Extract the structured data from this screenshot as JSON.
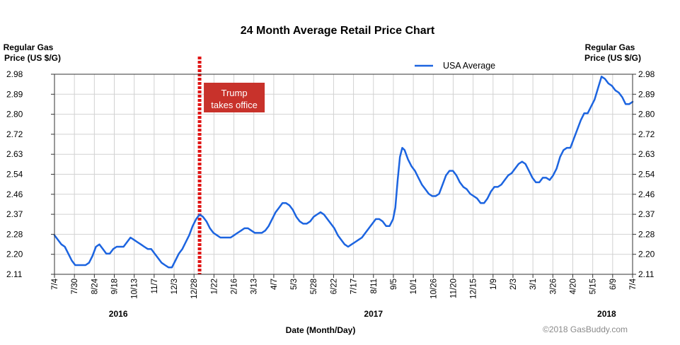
{
  "chart_data": {
    "type": "line",
    "title": "24 Month Average Retail Price Chart",
    "ylabel_left": [
      "Regular Gas",
      "Price (US $/G)"
    ],
    "ylabel_right": [
      "Regular Gas",
      "Price (US $/G)"
    ],
    "xlabel": "Date (Month/Day)",
    "yticks": [
      "2.98",
      "2.89",
      "2.80",
      "2.72",
      "2.63",
      "2.54",
      "2.46",
      "2.37",
      "2.28",
      "2.20",
      "2.11"
    ],
    "ylim": [
      2.11,
      2.98
    ],
    "xticks": [
      "7/4",
      "7/30",
      "8/24",
      "9/18",
      "10/13",
      "11/7",
      "12/3",
      "12/28",
      "1/22",
      "2/16",
      "3/13",
      "4/7",
      "5/3",
      "5/28",
      "6/22",
      "7/17",
      "8/11",
      "9/5",
      "10/1",
      "10/26",
      "11/20",
      "12/15",
      "1/9",
      "2/3",
      "3/1",
      "3/26",
      "4/20",
      "5/15",
      "6/9",
      "7/4"
    ],
    "years": [
      {
        "label": "2016",
        "at_tick": 3.2
      },
      {
        "label": "2017",
        "at_tick": 16.0
      },
      {
        "label": "2018",
        "at_tick": 27.7
      }
    ],
    "grid": true,
    "legend_position": "top-right",
    "series": [
      {
        "name": "USA Average",
        "color": "#1c64e0",
        "points": [
          [
            0,
            2.28
          ],
          [
            0.3,
            2.26
          ],
          [
            0.6,
            2.24
          ],
          [
            0.9,
            2.23
          ],
          [
            1.2,
            2.2
          ],
          [
            1.5,
            2.17
          ],
          [
            1.8,
            2.15
          ],
          [
            2.1,
            2.15
          ],
          [
            2.4,
            2.15
          ],
          [
            2.7,
            2.15
          ],
          [
            3.0,
            2.16
          ],
          [
            3.3,
            2.19
          ],
          [
            3.6,
            2.23
          ],
          [
            3.9,
            2.24
          ],
          [
            4.2,
            2.22
          ],
          [
            4.5,
            2.2
          ],
          [
            4.8,
            2.2
          ],
          [
            5.1,
            2.22
          ],
          [
            5.4,
            2.23
          ],
          [
            5.7,
            2.23
          ],
          [
            6.0,
            2.23
          ],
          [
            6.3,
            2.25
          ],
          [
            6.6,
            2.27
          ],
          [
            6.9,
            2.26
          ],
          [
            7.2,
            2.25
          ],
          [
            7.5,
            2.24
          ],
          [
            7.8,
            2.23
          ],
          [
            8.1,
            2.22
          ],
          [
            8.4,
            2.22
          ],
          [
            8.7,
            2.2
          ],
          [
            9.0,
            2.18
          ],
          [
            9.3,
            2.16
          ],
          [
            9.6,
            2.15
          ],
          [
            9.9,
            2.14
          ],
          [
            10.2,
            2.14
          ],
          [
            10.5,
            2.17
          ],
          [
            10.8,
            2.2
          ],
          [
            11.1,
            2.22
          ],
          [
            11.4,
            2.25
          ],
          [
            11.7,
            2.28
          ],
          [
            12.0,
            2.32
          ],
          [
            12.3,
            2.35
          ],
          [
            12.6,
            2.37
          ],
          [
            12.9,
            2.36
          ],
          [
            13.2,
            2.34
          ],
          [
            13.5,
            2.31
          ],
          [
            13.8,
            2.29
          ],
          [
            14.1,
            2.28
          ],
          [
            14.4,
            2.27
          ],
          [
            14.7,
            2.27
          ],
          [
            15.0,
            2.27
          ],
          [
            15.3,
            2.27
          ],
          [
            15.6,
            2.28
          ],
          [
            15.9,
            2.29
          ],
          [
            16.2,
            2.3
          ],
          [
            16.5,
            2.31
          ],
          [
            16.8,
            2.31
          ],
          [
            17.1,
            2.3
          ],
          [
            17.4,
            2.29
          ],
          [
            17.7,
            2.29
          ],
          [
            18.0,
            2.29
          ],
          [
            18.3,
            2.3
          ],
          [
            18.6,
            2.32
          ],
          [
            18.9,
            2.35
          ],
          [
            19.2,
            2.38
          ],
          [
            19.5,
            2.4
          ],
          [
            19.8,
            2.42
          ],
          [
            20.1,
            2.42
          ],
          [
            20.4,
            2.41
          ],
          [
            20.7,
            2.39
          ],
          [
            21.0,
            2.36
          ],
          [
            21.3,
            2.34
          ],
          [
            21.6,
            2.33
          ],
          [
            21.9,
            2.33
          ],
          [
            22.2,
            2.34
          ],
          [
            22.5,
            2.36
          ],
          [
            22.8,
            2.37
          ],
          [
            23.1,
            2.38
          ],
          [
            23.4,
            2.37
          ],
          [
            23.7,
            2.35
          ],
          [
            24.0,
            2.33
          ],
          [
            24.3,
            2.31
          ],
          [
            24.6,
            2.28
          ],
          [
            24.9,
            2.26
          ],
          [
            25.2,
            2.24
          ],
          [
            25.5,
            2.23
          ],
          [
            25.8,
            2.24
          ],
          [
            26.1,
            2.25
          ],
          [
            26.4,
            2.26
          ],
          [
            26.7,
            2.27
          ],
          [
            27.0,
            2.29
          ],
          [
            27.3,
            2.31
          ],
          [
            27.6,
            2.33
          ],
          [
            27.9,
            2.35
          ],
          [
            28.2,
            2.35
          ],
          [
            28.5,
            2.34
          ],
          [
            28.8,
            2.32
          ],
          [
            29.1,
            2.32
          ],
          [
            29.4,
            2.35
          ],
          [
            29.6,
            2.4
          ],
          [
            29.8,
            2.52
          ],
          [
            30.0,
            2.62
          ],
          [
            30.2,
            2.66
          ],
          [
            30.4,
            2.65
          ],
          [
            30.7,
            2.61
          ],
          [
            31.0,
            2.58
          ],
          [
            31.3,
            2.56
          ],
          [
            31.6,
            2.53
          ],
          [
            31.9,
            2.5
          ],
          [
            32.2,
            2.48
          ],
          [
            32.5,
            2.46
          ],
          [
            32.8,
            2.45
          ],
          [
            33.1,
            2.45
          ],
          [
            33.4,
            2.46
          ],
          [
            33.7,
            2.5
          ],
          [
            34.0,
            2.54
          ],
          [
            34.3,
            2.56
          ],
          [
            34.6,
            2.56
          ],
          [
            34.9,
            2.54
          ],
          [
            35.2,
            2.51
          ],
          [
            35.5,
            2.49
          ],
          [
            35.8,
            2.48
          ],
          [
            36.1,
            2.46
          ],
          [
            36.4,
            2.45
          ],
          [
            36.7,
            2.44
          ],
          [
            37.0,
            2.42
          ],
          [
            37.3,
            2.42
          ],
          [
            37.6,
            2.44
          ],
          [
            37.9,
            2.47
          ],
          [
            38.2,
            2.49
          ],
          [
            38.5,
            2.49
          ],
          [
            38.8,
            2.5
          ],
          [
            39.1,
            2.52
          ],
          [
            39.4,
            2.54
          ],
          [
            39.7,
            2.55
          ],
          [
            40.0,
            2.57
          ],
          [
            40.3,
            2.59
          ],
          [
            40.6,
            2.6
          ],
          [
            40.9,
            2.59
          ],
          [
            41.2,
            2.56
          ],
          [
            41.5,
            2.53
          ],
          [
            41.8,
            2.51
          ],
          [
            42.1,
            2.51
          ],
          [
            42.4,
            2.53
          ],
          [
            42.7,
            2.53
          ],
          [
            43.0,
            2.52
          ],
          [
            43.3,
            2.54
          ],
          [
            43.6,
            2.57
          ],
          [
            43.9,
            2.62
          ],
          [
            44.2,
            2.65
          ],
          [
            44.5,
            2.66
          ],
          [
            44.8,
            2.66
          ],
          [
            45.1,
            2.7
          ],
          [
            45.4,
            2.74
          ],
          [
            45.7,
            2.78
          ],
          [
            46.0,
            2.81
          ],
          [
            46.3,
            2.81
          ],
          [
            46.6,
            2.84
          ],
          [
            46.9,
            2.87
          ],
          [
            47.2,
            2.92
          ],
          [
            47.5,
            2.97
          ],
          [
            47.8,
            2.96
          ],
          [
            48.1,
            2.94
          ],
          [
            48.4,
            2.93
          ],
          [
            48.7,
            2.91
          ],
          [
            49.0,
            2.9
          ],
          [
            49.3,
            2.88
          ],
          [
            49.6,
            2.85
          ],
          [
            49.9,
            2.85
          ],
          [
            50.2,
            2.86
          ]
        ],
        "x_max": 50.2
      }
    ],
    "annotation": {
      "lines": [
        "Trump",
        "takes office"
      ],
      "at_x": 12.6,
      "fill": "#c8322b",
      "line_color": "#e01414"
    },
    "copyright": "©2018 GasBuddy.com"
  }
}
